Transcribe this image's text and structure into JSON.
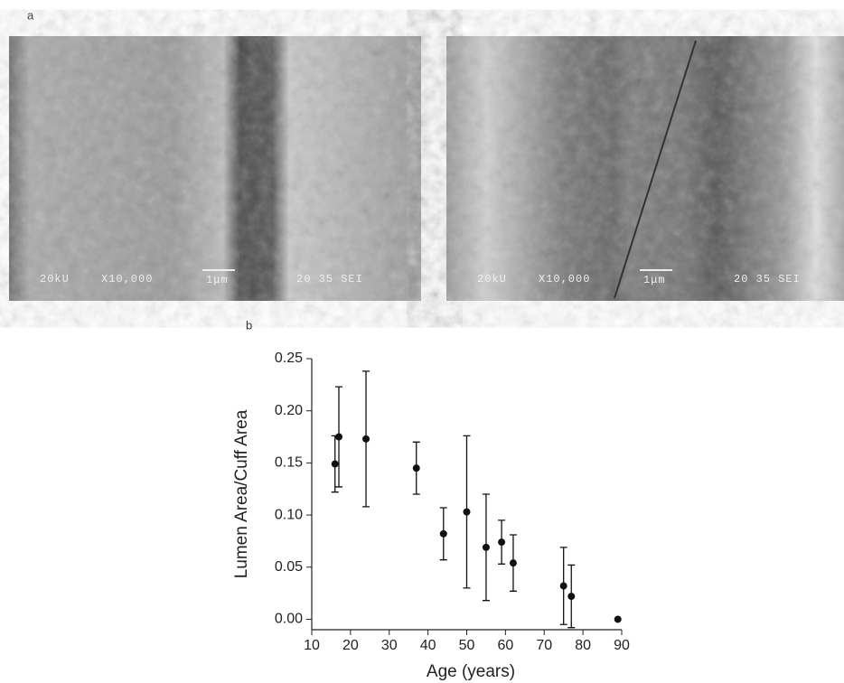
{
  "panel_labels": [
    "a",
    "b"
  ],
  "images": [
    {
      "labels": [
        "20kU",
        "X10,000",
        "1μm",
        "20 35 SEI"
      ]
    },
    {
      "labels": [
        "20kU",
        "X10,000",
        "1μm",
        "20 35 SEI"
      ]
    }
  ],
  "chart_data": {
    "type": "scatter",
    "x_label": "Age (years)",
    "y_label": "Lumen Area/Cuff Area",
    "x": [
      16,
      17,
      24,
      37,
      44,
      50,
      55,
      59,
      62,
      75,
      77,
      89
    ],
    "values": [
      0.149,
      0.175,
      0.173,
      0.145,
      0.082,
      0.103,
      0.069,
      0.074,
      0.054,
      0.032,
      0.022,
      0.0
    ],
    "errors": [
      0.027,
      0.048,
      0.065,
      0.025,
      0.025,
      0.073,
      0.051,
      0.021,
      0.027,
      0.037,
      0.03,
      0
    ],
    "color": "#111111",
    "xlim": [
      10,
      90
    ],
    "ylim": [
      -0.01,
      0.25
    ],
    "xticks": [
      10,
      20,
      30,
      40,
      50,
      60,
      70,
      80,
      90
    ],
    "yticks": [
      {
        "value": 0,
        "label": "0.00"
      },
      {
        "value": 0.05,
        "label": "0.05"
      },
      {
        "value": 0.1,
        "label": "0.10"
      },
      {
        "value": 0.15,
        "label": "0.15"
      },
      {
        "value": 0.2,
        "label": "0.20"
      },
      {
        "value": 0.25,
        "label": "0.25"
      }
    ]
  }
}
